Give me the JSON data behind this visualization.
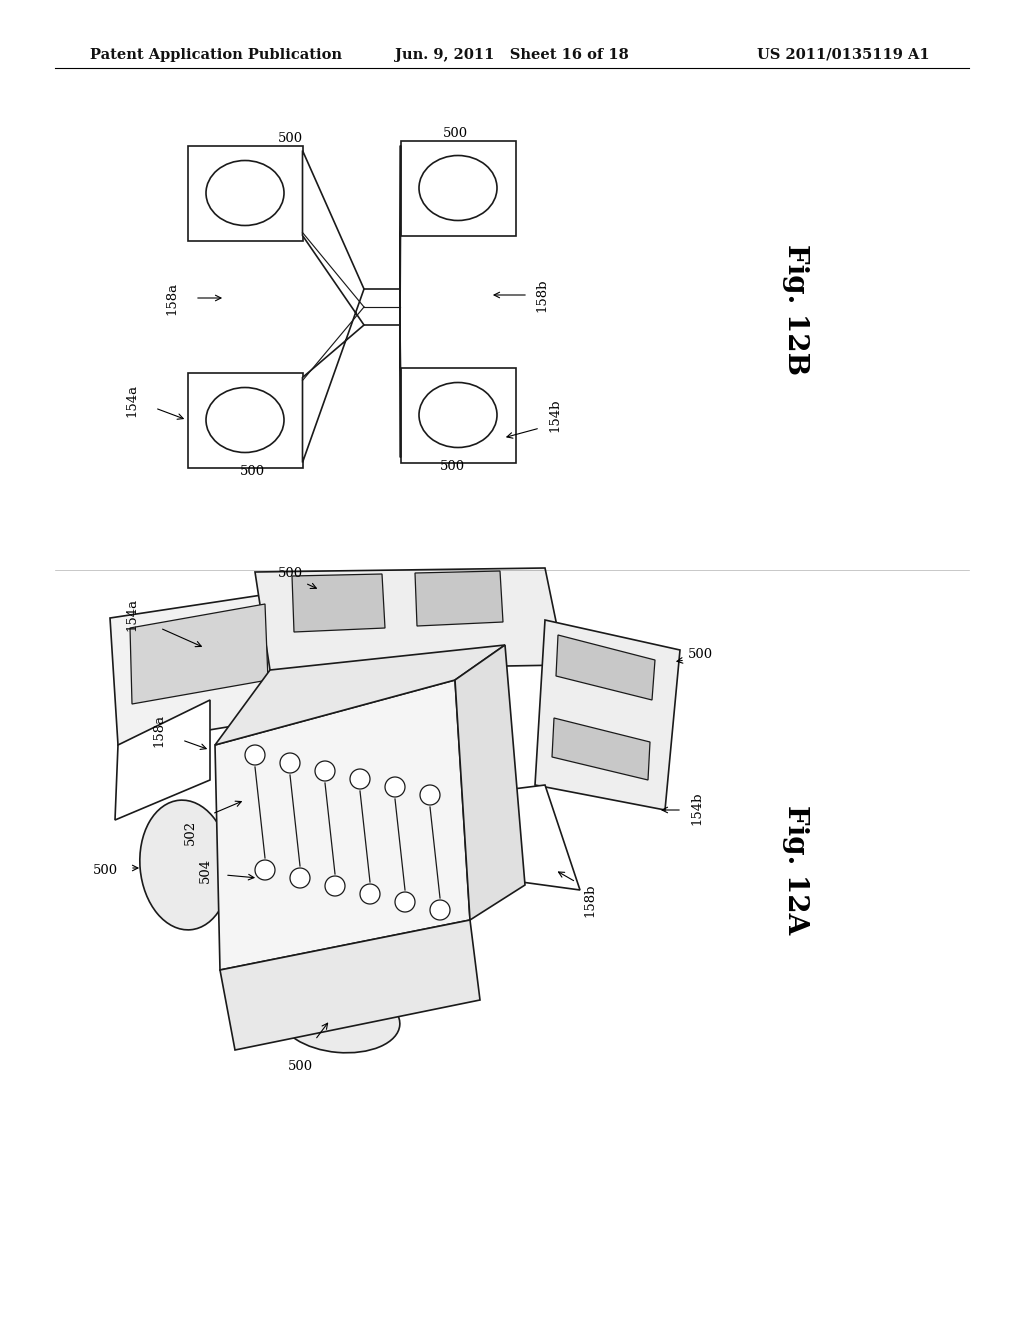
{
  "header_left": "Patent Application Publication",
  "header_mid": "Jun. 9, 2011   Sheet 16 of 18",
  "header_right": "US 2011/0135119 A1",
  "fig12b_label": "Fig. 12B",
  "fig12a_label": "Fig. 12A",
  "bg_color": "#ffffff",
  "line_color": "#1a1a1a",
  "header_fontsize": 10.5,
  "label_fontsize": 9.5,
  "fig_label_fontsize": 20
}
